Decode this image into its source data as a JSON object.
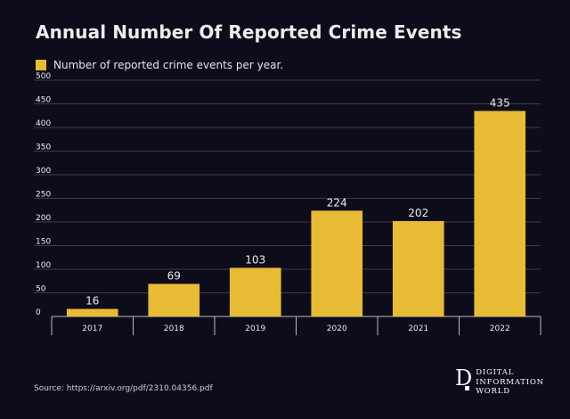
{
  "colors": {
    "background": "#0d0c1a",
    "bar": "#e8bb35",
    "text": "#ececec",
    "grid": "#3c3b4a",
    "axis": "#bcbcbc"
  },
  "chart_data": {
    "type": "bar",
    "title": "Annual Number Of Reported Crime Events",
    "legend": [
      "Number of reported crime events per year."
    ],
    "legend_position": "top-left",
    "categories": [
      "2017",
      "2018",
      "2019",
      "2020",
      "2021",
      "2022"
    ],
    "values": [
      16,
      69,
      103,
      224,
      202,
      435
    ],
    "series": [
      {
        "name": "Number of reported crime events per year.",
        "values": [
          16,
          69,
          103,
          224,
          202,
          435
        ]
      }
    ],
    "ylim": [
      0,
      500
    ],
    "yticks": [
      0,
      50,
      100,
      150,
      200,
      250,
      300,
      350,
      400,
      450,
      500
    ],
    "xlabel": "",
    "ylabel": "",
    "grid": true
  },
  "footer": {
    "source": "Source: https://arxiv.org/pdf/2310.04356.pdf",
    "brand_mark": "D",
    "brand_lines": [
      "DIGITAL",
      "INFORMATION",
      "WORLD"
    ]
  }
}
